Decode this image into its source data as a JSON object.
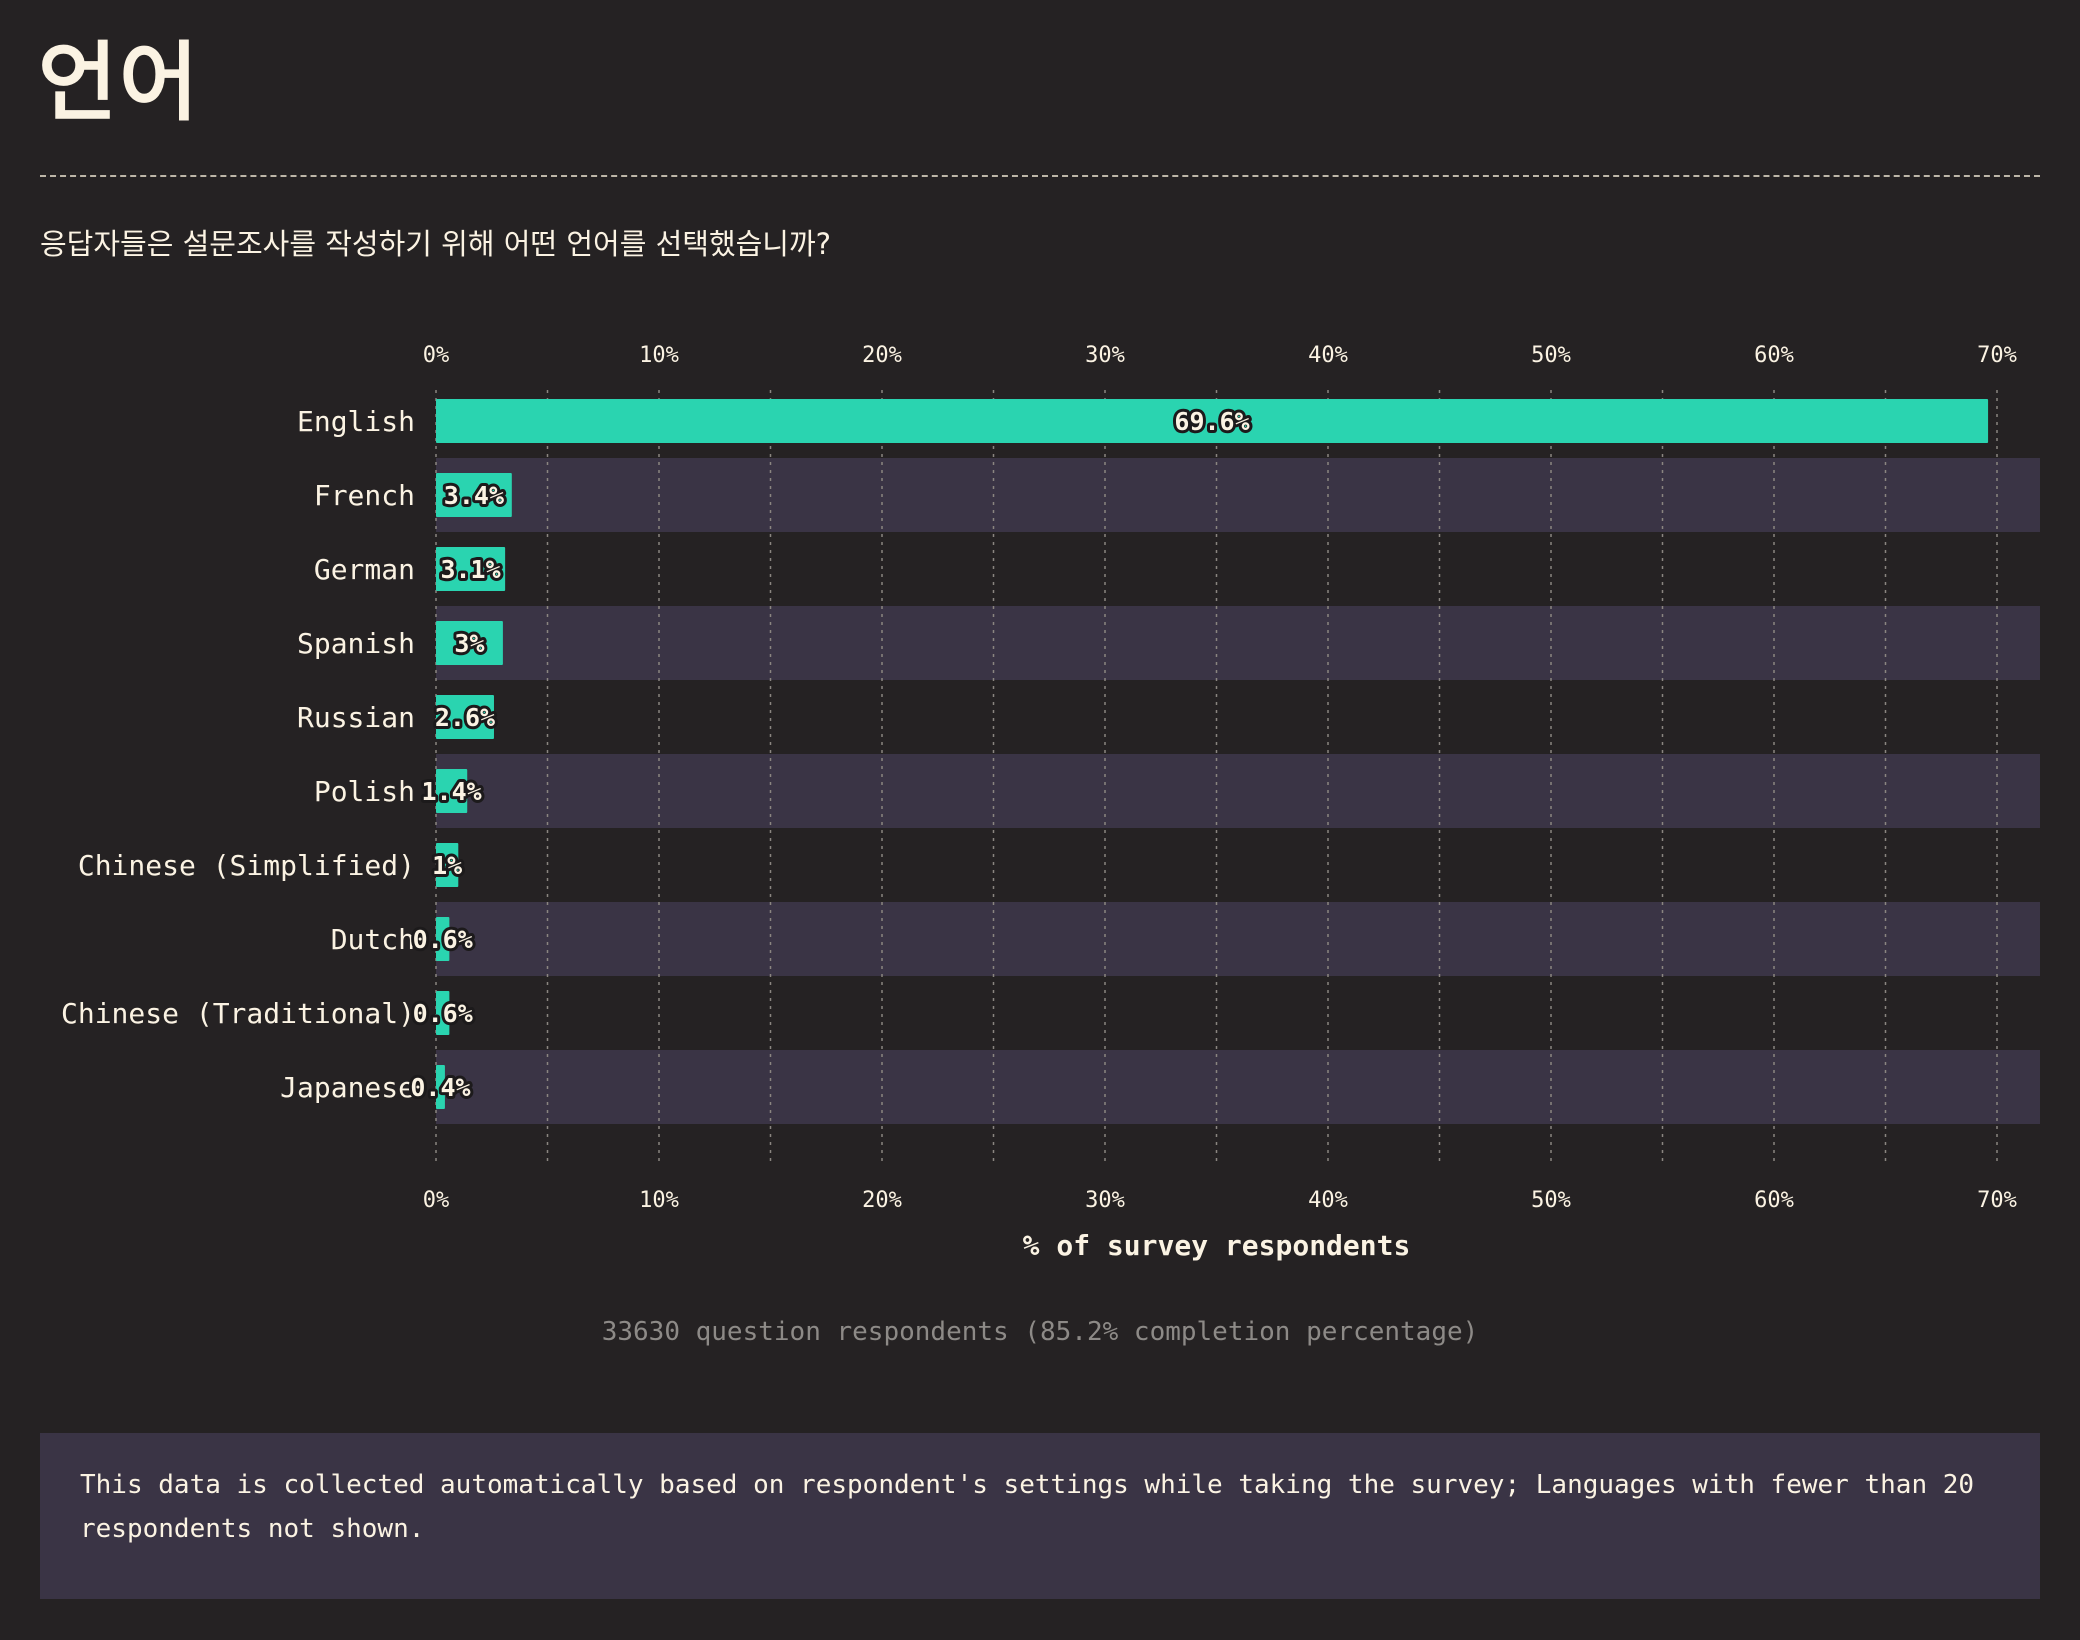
{
  "title": "언어",
  "question": "응답자들은 설문조사를 작성하기 위해 어떤 언어를 선택했습니까?",
  "chart_data": {
    "type": "bar",
    "orientation": "horizontal",
    "categories": [
      "English",
      "French",
      "German",
      "Spanish",
      "Russian",
      "Polish",
      "Chinese (Simplified)",
      "Dutch",
      "Chinese (Traditional)",
      "Japanese"
    ],
    "values": [
      69.6,
      3.4,
      3.1,
      3,
      2.6,
      1.4,
      1,
      0.6,
      0.6,
      0.4
    ],
    "value_labels": [
      "69.6%",
      "3.4%",
      "3.1%",
      "3%",
      "2.6%",
      "1.4%",
      "1%",
      "0.6%",
      "0.6%",
      "0.4%"
    ],
    "xlabel": "% of survey respondents",
    "xlim": [
      0,
      70
    ],
    "x_ticks": [
      0,
      10,
      20,
      30,
      40,
      50,
      60,
      70
    ],
    "x_tick_labels": [
      "0%",
      "10%",
      "20%",
      "30%",
      "40%",
      "50%",
      "60%",
      "70%"
    ],
    "tick_axes": "top and bottom",
    "grid": true,
    "legend": "none",
    "bar_color": "#2ad4b0",
    "band_color": "#3a3445",
    "background_color": "#252223"
  },
  "respondents_note": "33630 question respondents (85.2% completion percentage)",
  "footnote": "This data is collected automatically based on respondent's settings while taking the survey; Languages with fewer than 20 respondents not shown."
}
